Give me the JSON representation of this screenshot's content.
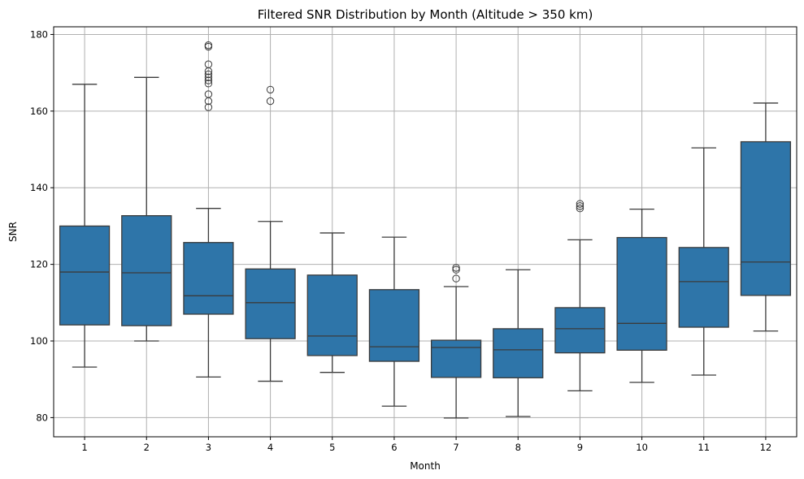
{
  "chart_data": {
    "type": "box",
    "title": "Filtered SNR Distribution by Month (Altitude > 350 km)",
    "xlabel": "Month",
    "ylabel": "SNR",
    "categories": [
      "1",
      "2",
      "3",
      "4",
      "5",
      "6",
      "7",
      "8",
      "9",
      "10",
      "11",
      "12"
    ],
    "ylim": [
      75,
      182
    ],
    "yticks": [
      80,
      100,
      120,
      140,
      160,
      180
    ],
    "grid": true,
    "colors": {
      "box": "#2e75a9",
      "line": "#3b3b3b",
      "grid": "#b0b0b0"
    },
    "boxes": [
      {
        "month": "1",
        "whislo": 93.2,
        "q1": 104.2,
        "med": 118.0,
        "q3": 130.0,
        "whishi": 167.0,
        "fliers": []
      },
      {
        "month": "2",
        "whislo": 100.0,
        "q1": 104.0,
        "med": 117.8,
        "q3": 132.7,
        "whishi": 168.8,
        "fliers": []
      },
      {
        "month": "3",
        "whislo": 90.6,
        "q1": 107.0,
        "med": 111.8,
        "q3": 125.7,
        "whishi": 134.6,
        "fliers": [
          161.0,
          162.6,
          164.4,
          167.2,
          168.0,
          168.8,
          169.6,
          170.4,
          172.2,
          176.8,
          177.2
        ]
      },
      {
        "month": "4",
        "whislo": 89.5,
        "q1": 100.6,
        "med": 110.0,
        "q3": 118.8,
        "whishi": 131.2,
        "fliers": [
          162.6,
          165.6
        ]
      },
      {
        "month": "5",
        "whislo": 91.8,
        "q1": 96.2,
        "med": 101.3,
        "q3": 117.2,
        "whishi": 128.2,
        "fliers": []
      },
      {
        "month": "6",
        "whislo": 83.0,
        "q1": 94.7,
        "med": 98.5,
        "q3": 113.4,
        "whishi": 127.1,
        "fliers": []
      },
      {
        "month": "7",
        "whislo": 79.9,
        "q1": 90.5,
        "med": 98.3,
        "q3": 100.2,
        "whishi": 114.2,
        "fliers": [
          116.3,
          118.6,
          119.1
        ]
      },
      {
        "month": "8",
        "whislo": 80.3,
        "q1": 90.4,
        "med": 97.7,
        "q3": 103.2,
        "whishi": 118.6,
        "fliers": []
      },
      {
        "month": "9",
        "whislo": 87.0,
        "q1": 96.9,
        "med": 103.2,
        "q3": 108.7,
        "whishi": 126.4,
        "fliers": [
          134.6,
          135.2,
          135.8
        ]
      },
      {
        "month": "10",
        "whislo": 89.2,
        "q1": 97.6,
        "med": 104.6,
        "q3": 127.0,
        "whishi": 134.4,
        "fliers": []
      },
      {
        "month": "11",
        "whislo": 91.1,
        "q1": 103.6,
        "med": 115.5,
        "q3": 124.4,
        "whishi": 150.4,
        "fliers": []
      },
      {
        "month": "12",
        "whislo": 102.6,
        "q1": 111.9,
        "med": 120.6,
        "q3": 152.0,
        "whishi": 162.1,
        "fliers": []
      }
    ]
  }
}
